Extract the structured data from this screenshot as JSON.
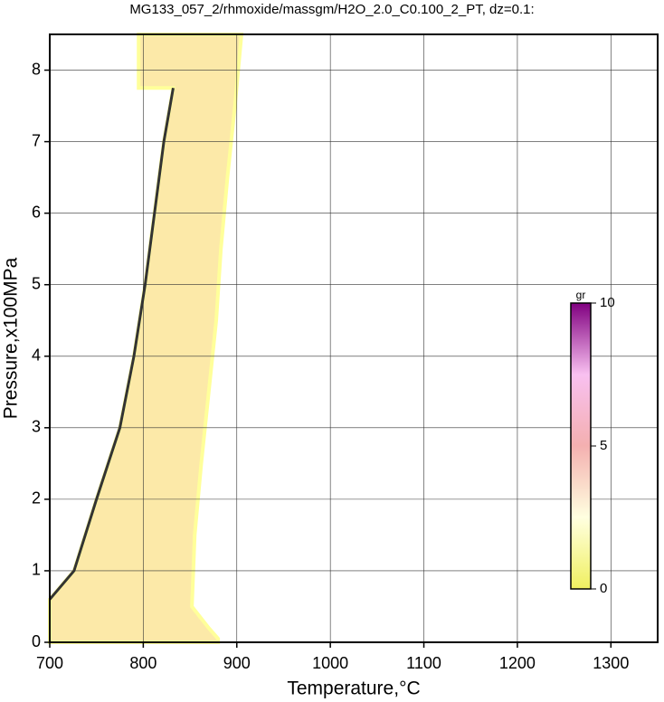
{
  "chart_data": {
    "type": "contour",
    "title": "MG133_057_2/rhmoxide/massgm/H2O_2.0_C0.100_2_PT, dz=0.1:",
    "x_label": "Temperature,°C",
    "y_label": "Pressure,x100MPa",
    "xlim": [
      700,
      1350
    ],
    "ylim": [
      0,
      8.5
    ],
    "xticks": [
      700,
      800,
      900,
      1000,
      1100,
      1200,
      1300
    ],
    "yticks": [
      0,
      1,
      2,
      3,
      4,
      5,
      6,
      7,
      8
    ],
    "grid": true,
    "region_color": "#fce9a8",
    "region_edge_color": "#ffff9a",
    "boundary_color": "#333333",
    "region": {
      "x": [
        700,
        700,
        726,
        750,
        775,
        790,
        802,
        812,
        822,
        832,
        795,
        795,
        905,
        898,
        890,
        883,
        878,
        870,
        862,
        855,
        852,
        870,
        880,
        880
      ],
      "y": [
        0,
        0.6,
        1.0,
        2.0,
        3.0,
        4.0,
        5.0,
        6.0,
        7.0,
        7.75,
        7.75,
        8.5,
        8.5,
        7.5,
        6.5,
        5.5,
        4.5,
        3.5,
        2.5,
        1.5,
        0.5,
        0.2,
        0.05,
        0
      ]
    },
    "colorbar": {
      "label": "gr",
      "lim": [
        0,
        10
      ],
      "ticks": [
        0,
        5,
        10
      ],
      "colors": [
        "#f0f060",
        "#ffffe0",
        "#f4b0b0",
        "#f8c0f0",
        "#800080"
      ]
    }
  }
}
